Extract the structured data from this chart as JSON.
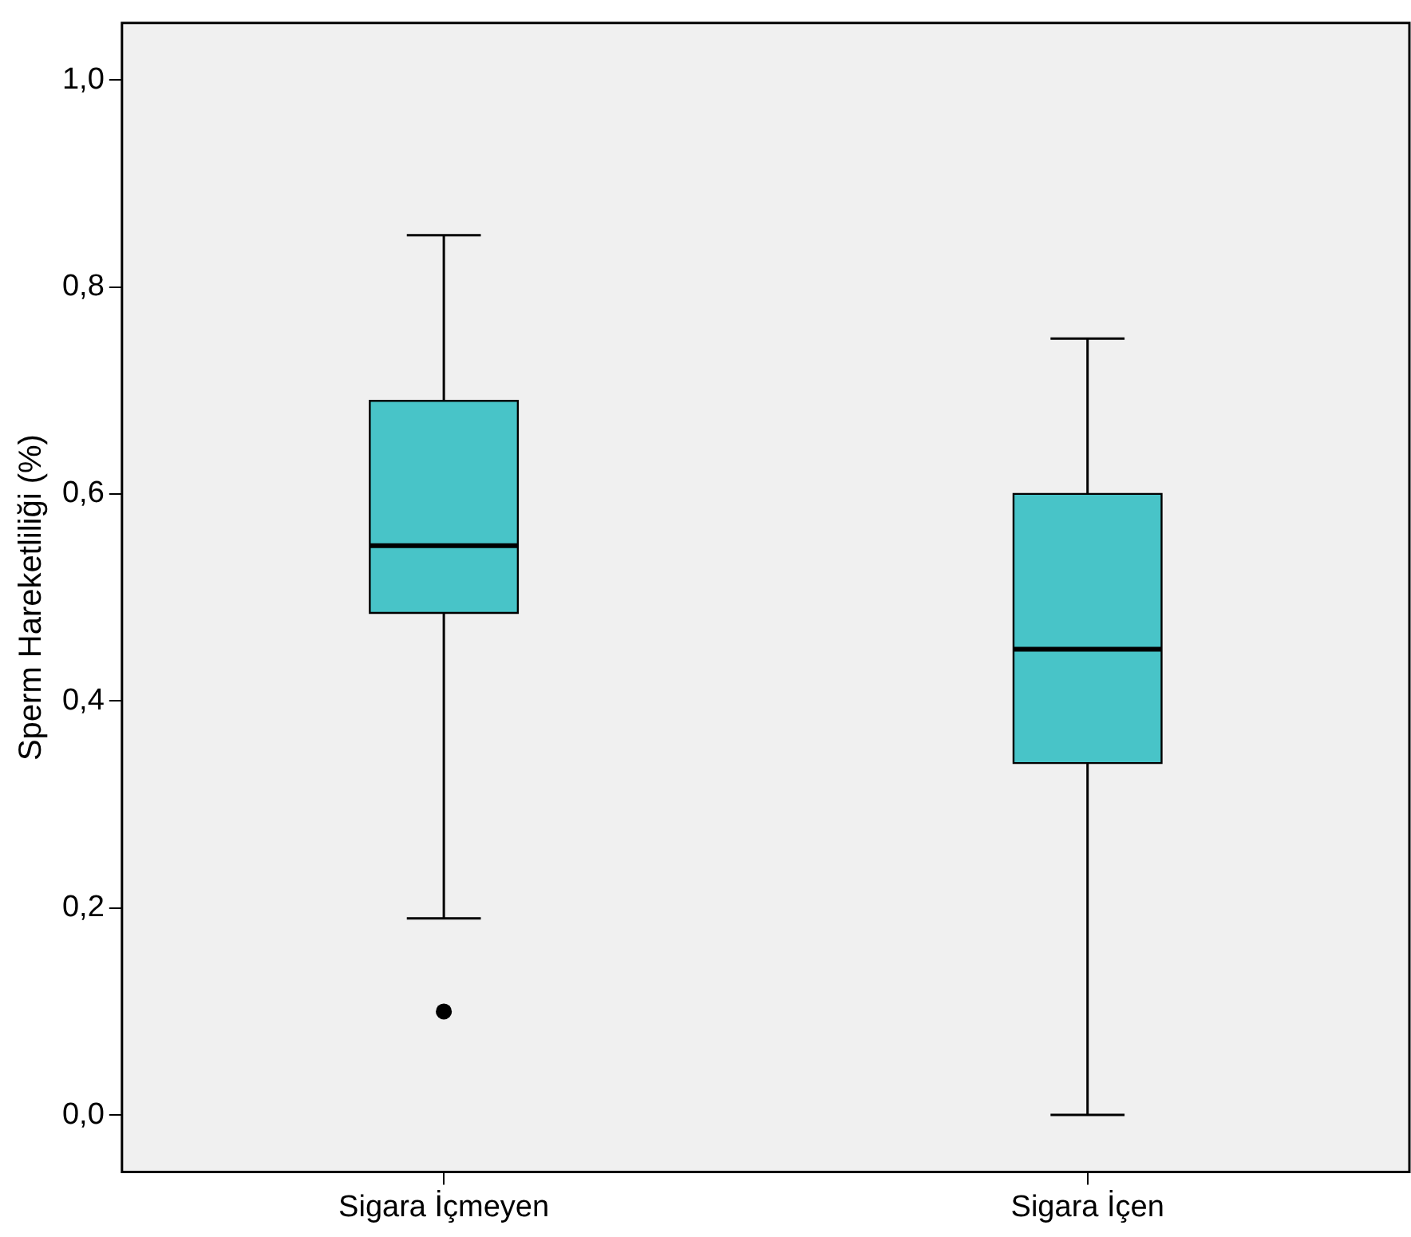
{
  "chart_data": {
    "type": "box",
    "ylabel": "Sperm Hareketliliği (%)",
    "categories": [
      "Sigara İçmeyen",
      "Sigara İçen"
    ],
    "series": [
      {
        "color": "#48c4c8",
        "boxes": [
          {
            "low": 0.19,
            "q1": 0.485,
            "median": 0.55,
            "q3": 0.69,
            "high": 0.85,
            "outliers": [
              0.1
            ]
          },
          {
            "low": 0,
            "q1": 0.34,
            "median": 0.45,
            "q3": 0.6,
            "high": 0.75
          }
        ]
      }
    ],
    "ylim": [
      -0.055,
      1.055
    ],
    "yticks": [
      {
        "value": 0,
        "label": "0,0"
      },
      {
        "value": 0.2,
        "label": "0,2"
      },
      {
        "value": 0.4,
        "label": "0,4"
      },
      {
        "value": 0.6,
        "label": "0,6"
      },
      {
        "value": 0.8,
        "label": "0,8"
      },
      {
        "value": 1,
        "label": "1,0"
      }
    ],
    "legend": false
  }
}
